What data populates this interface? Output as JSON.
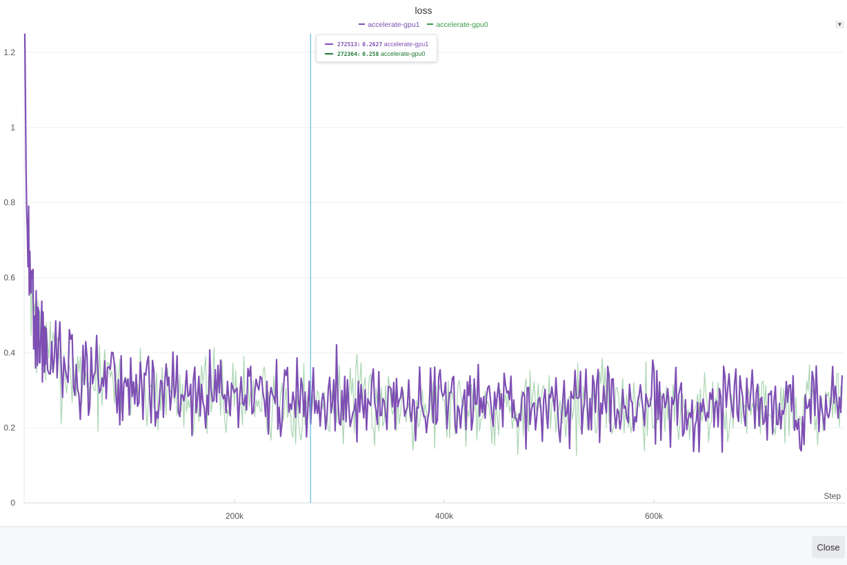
{
  "chart_data": {
    "type": "line",
    "title": "loss",
    "xlabel": "Step",
    "ylabel": "",
    "xlim": [
      0,
      785000
    ],
    "ylim": [
      0,
      1.25
    ],
    "x_ticks": [
      {
        "value": 200000,
        "label": "200k"
      },
      {
        "value": 400000,
        "label": "400k"
      },
      {
        "value": 600000,
        "label": "600k"
      }
    ],
    "y_ticks": [
      {
        "value": 0,
        "label": "0"
      },
      {
        "value": 0.2,
        "label": "0.2"
      },
      {
        "value": 0.4,
        "label": "0.4"
      },
      {
        "value": 0.6,
        "label": "0.6"
      },
      {
        "value": 0.8,
        "label": "0.8"
      },
      {
        "value": 1,
        "label": "1"
      },
      {
        "value": 1.2,
        "label": "1.2"
      }
    ],
    "grid": true,
    "legend_position": "top-center",
    "series": [
      {
        "name": "accelerate-gpu1",
        "color": "#7e4fb3",
        "x": [
          0,
          1500,
          3000,
          5000,
          7000,
          9000,
          12000,
          16000,
          20000,
          25000,
          30000,
          40000,
          50000,
          60000,
          80000,
          100000,
          120000,
          150000,
          180000,
          200000,
          240000,
          272513,
          300000,
          350000,
          400000,
          450000,
          500000,
          550000,
          600000,
          650000,
          700000,
          750000,
          780000
        ],
        "y": [
          1.25,
          0.8,
          0.68,
          0.6,
          0.55,
          0.5,
          0.46,
          0.43,
          0.41,
          0.39,
          0.37,
          0.35,
          0.34,
          0.33,
          0.32,
          0.31,
          0.3,
          0.29,
          0.29,
          0.28,
          0.28,
          0.2627,
          0.27,
          0.27,
          0.265,
          0.26,
          0.26,
          0.26,
          0.26,
          0.255,
          0.26,
          0.26,
          0.255
        ]
      },
      {
        "name": "accelerate-gpu0",
        "color": "#3a9a4a",
        "x": [
          0,
          1500,
          3000,
          5000,
          7000,
          9000,
          12000,
          16000,
          20000,
          25000,
          30000,
          40000,
          50000,
          60000,
          80000,
          100000,
          120000,
          150000,
          180000,
          200000,
          240000,
          272364,
          300000,
          350000,
          400000,
          450000,
          500000,
          550000,
          600000,
          650000,
          700000,
          750000,
          780000
        ],
        "y": [
          1.22,
          0.78,
          0.67,
          0.59,
          0.54,
          0.49,
          0.455,
          0.43,
          0.41,
          0.39,
          0.37,
          0.35,
          0.34,
          0.33,
          0.32,
          0.31,
          0.3,
          0.29,
          0.285,
          0.28,
          0.275,
          0.258,
          0.27,
          0.265,
          0.26,
          0.26,
          0.255,
          0.26,
          0.255,
          0.255,
          0.255,
          0.26,
          0.25
        ]
      }
    ],
    "hover": {
      "step": 272513,
      "rows": [
        {
          "key": "272513:",
          "value": "0.2627",
          "name": "accelerate-gpu1",
          "color": "#7e4fb3"
        },
        {
          "key": "272364:",
          "value": "0.258",
          "name": "accelerate-gpu0",
          "color": "#1f7a35"
        }
      ]
    }
  },
  "footer": {
    "close_label": "Close"
  },
  "menu_icon": "chevron-down-icon"
}
